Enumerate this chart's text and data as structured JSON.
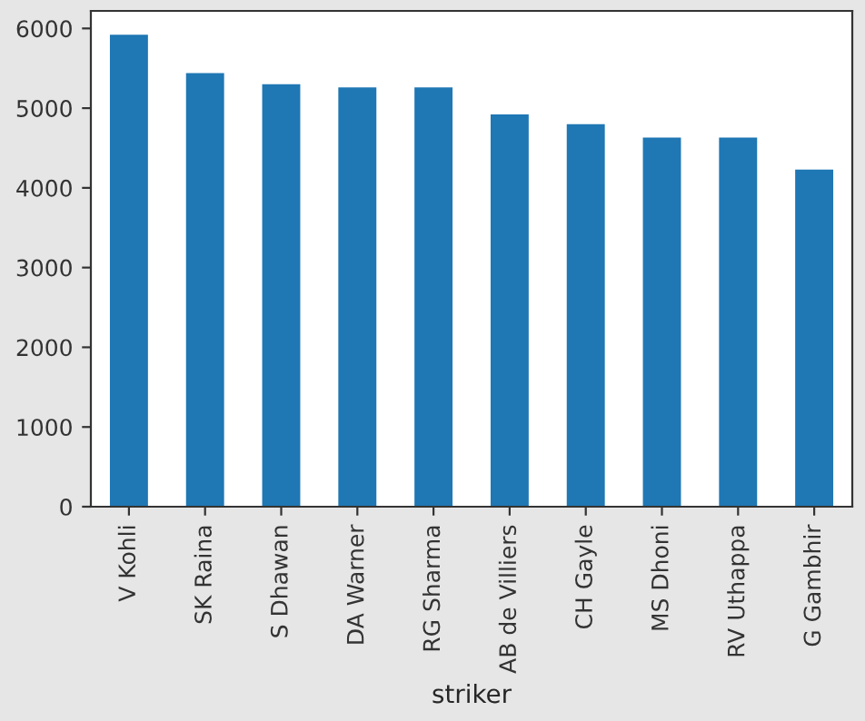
{
  "chart_data": {
    "type": "bar",
    "xlabel": "striker",
    "categories": [
      "V Kohli",
      "SK Raina",
      "S Dhawan",
      "DA Warner",
      "RG Sharma",
      "AB de Villiers",
      "CH Gayle",
      "MS Dhoni",
      "RV Uthappa",
      "G Gambhir"
    ],
    "values": [
      5920,
      5440,
      5300,
      5260,
      5260,
      4920,
      4800,
      4630,
      4630,
      4230
    ],
    "color": "#1f77b4",
    "ylim": [
      0,
      6220
    ],
    "yticks": [
      0,
      1000,
      2000,
      3000,
      4000,
      5000,
      6000
    ],
    "grid": false
  }
}
